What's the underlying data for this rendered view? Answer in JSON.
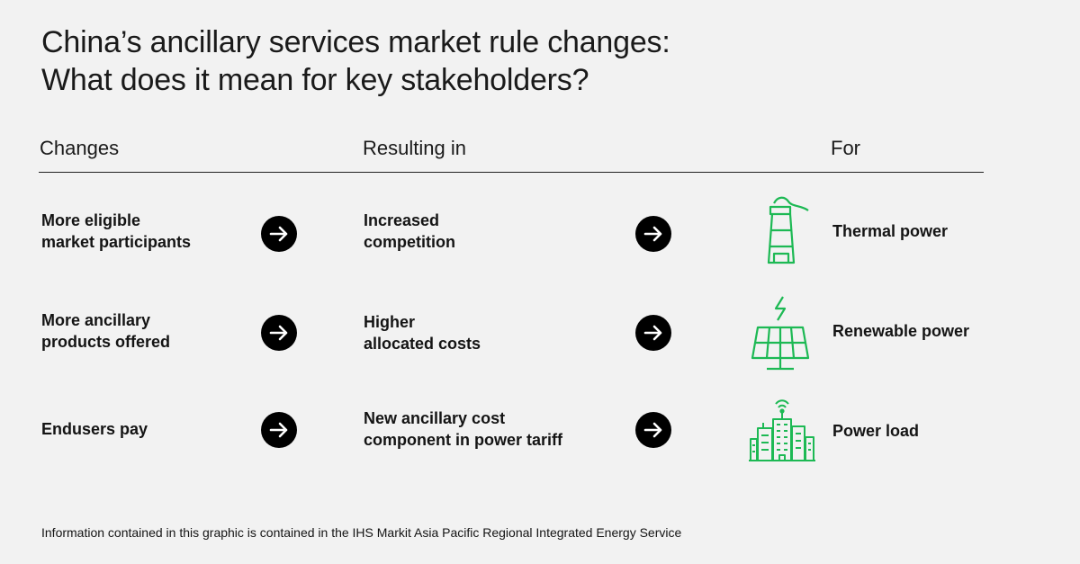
{
  "title": {
    "line1": "China’s ancillary services market rule changes:",
    "line2": "What does it mean for key stakeholders?"
  },
  "columns": {
    "changes": "Changes",
    "resulting": "Resulting in",
    "for": "For"
  },
  "rows": [
    {
      "change": [
        "More eligible",
        "market participants"
      ],
      "result": [
        "Increased",
        "competition"
      ],
      "stakeholder": "Thermal power",
      "icon": "thermal-plant-icon"
    },
    {
      "change": [
        "More ancillary",
        "products offered"
      ],
      "result": [
        "Higher",
        "allocated costs"
      ],
      "stakeholder": "Renewable power",
      "icon": "solar-panel-icon"
    },
    {
      "change": [
        "Endusers pay"
      ],
      "result": [
        "New ancillary cost",
        "component in power tariff"
      ],
      "stakeholder": "Power load",
      "icon": "city-buildings-icon"
    }
  ],
  "footnote": "Information contained in this graphic is contained in the IHS Markit Asia Pacific Regional Integrated Energy Service",
  "colors": {
    "background": "#f2f2f2",
    "accent": "#1db954",
    "arrow_bg": "#000000"
  }
}
